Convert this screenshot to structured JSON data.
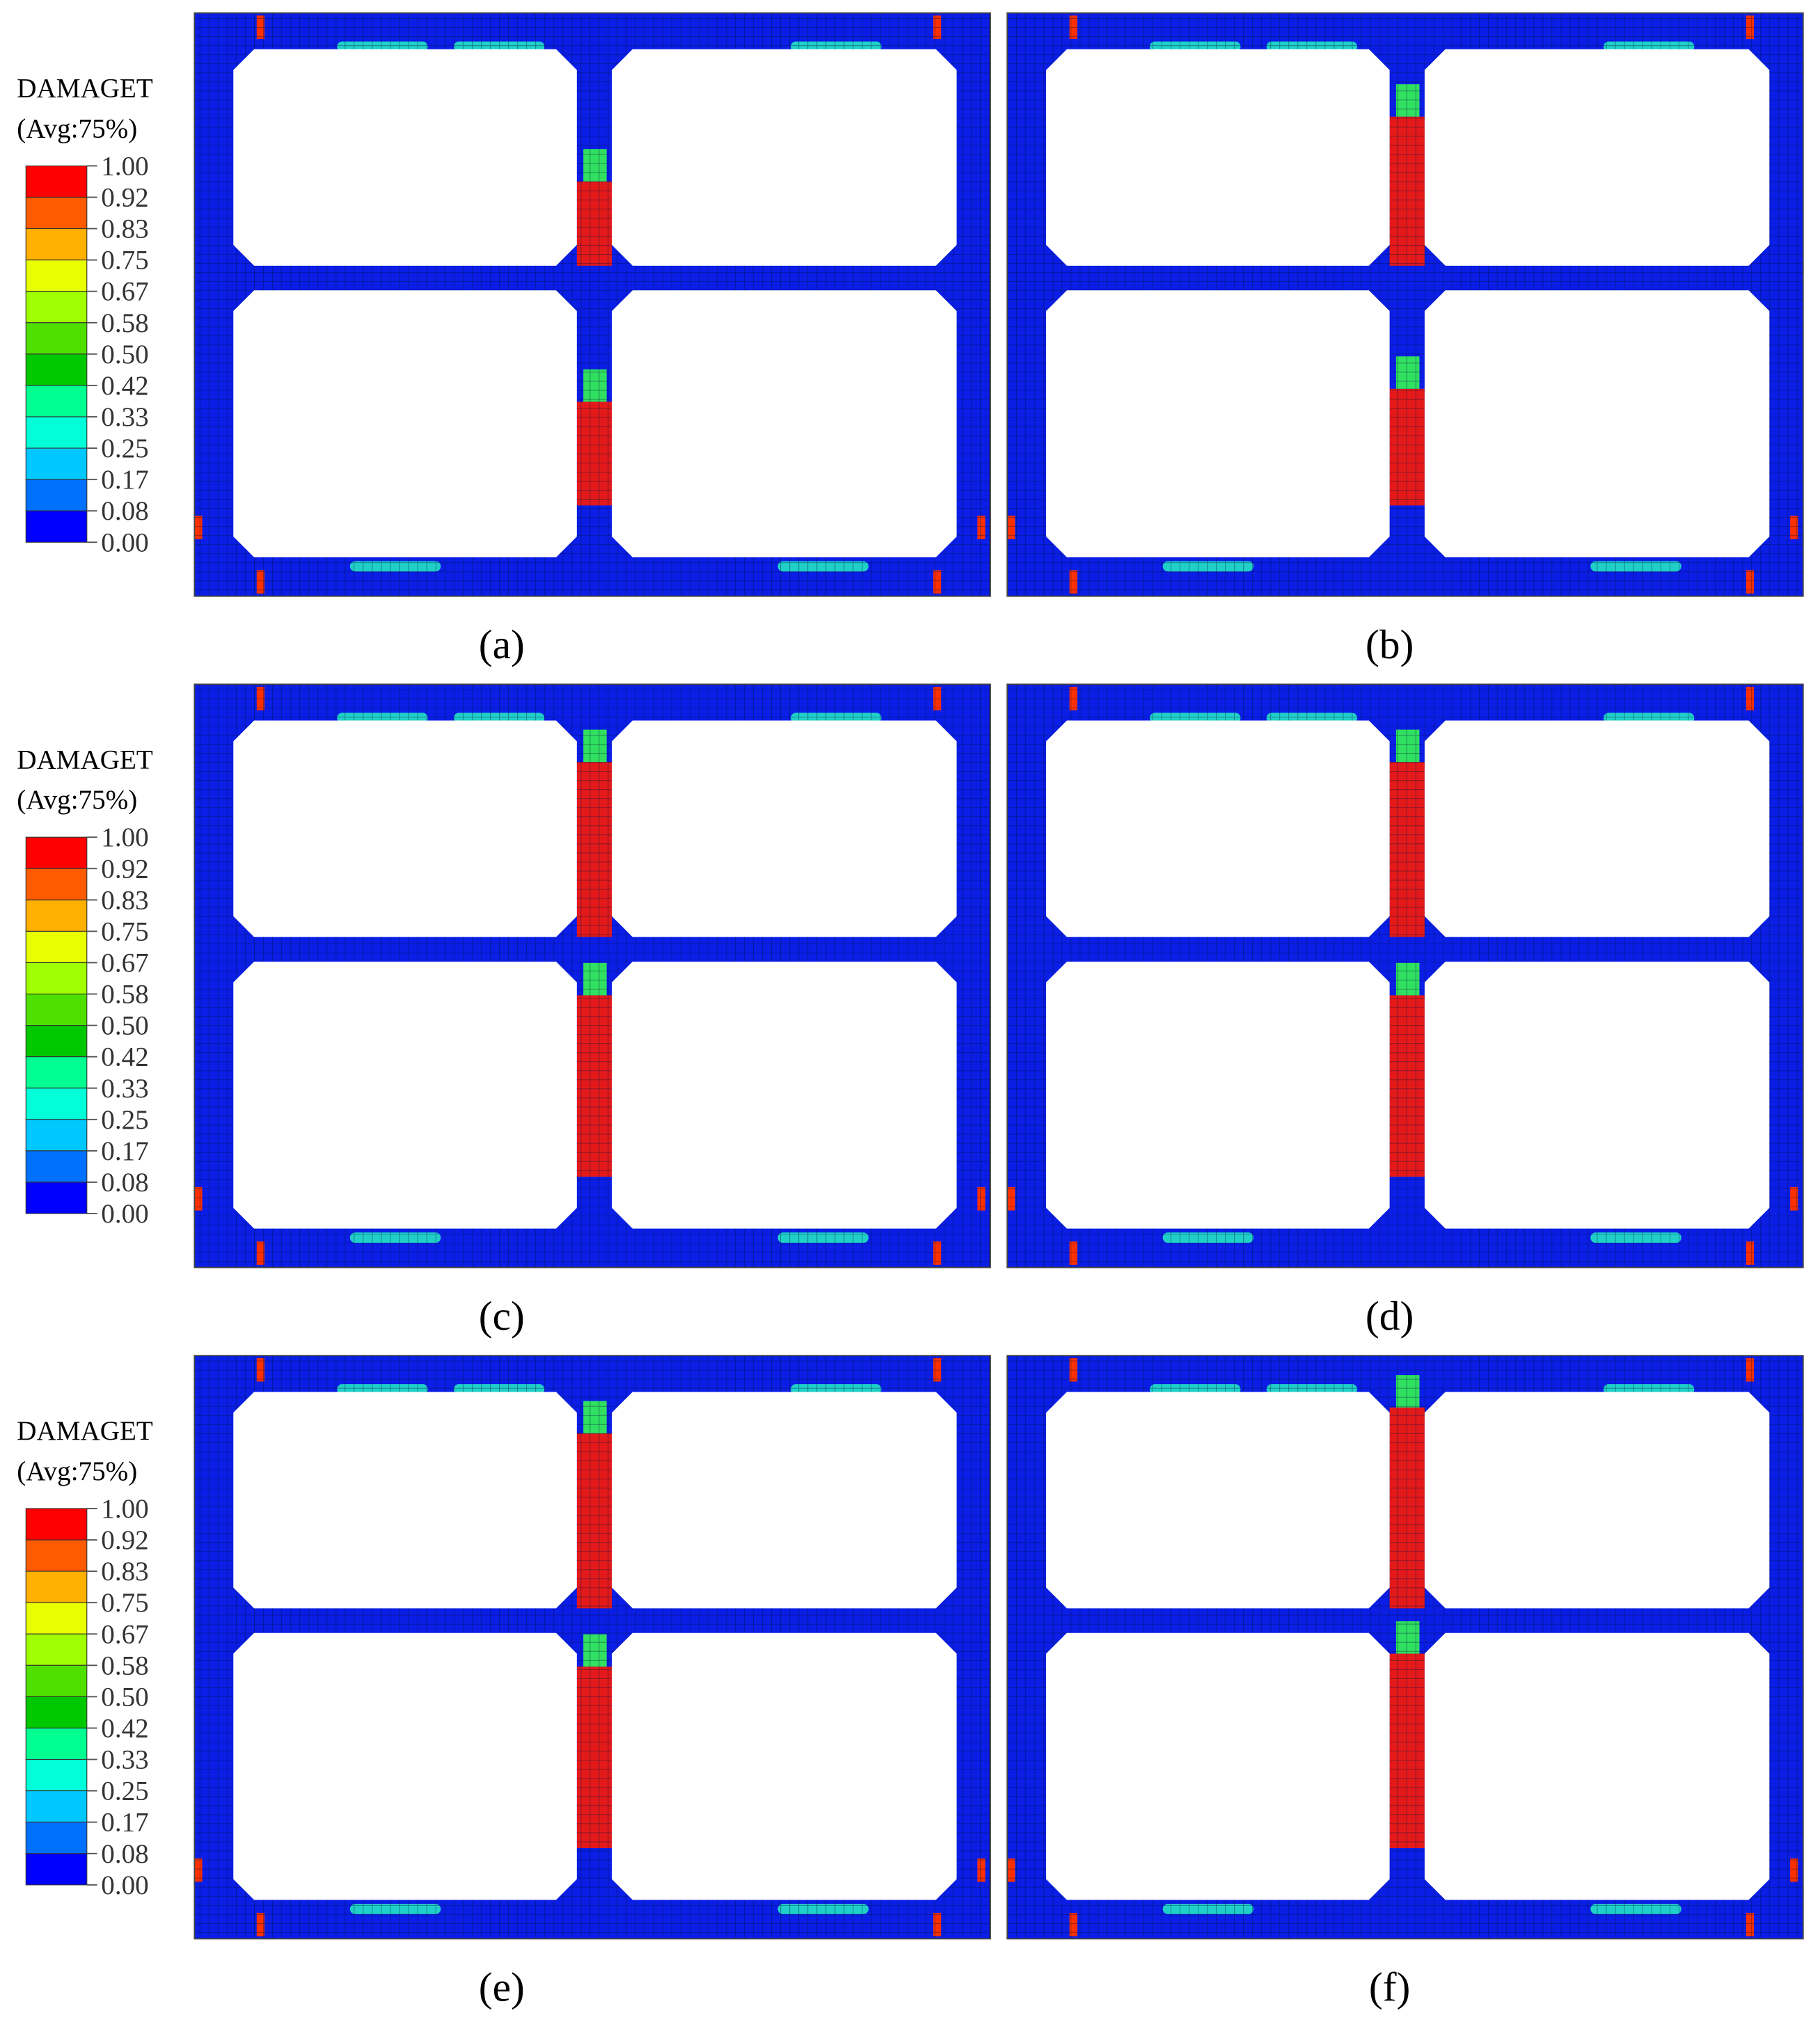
{
  "legends": [
    {
      "title": "DAMAGET",
      "subtitle": "(Avg:75%)",
      "ticks": [
        "1.00",
        "0.92",
        "0.83",
        "0.75",
        "0.67",
        "0.58",
        "0.50",
        "0.42",
        "0.33",
        "0.25",
        "0.17",
        "0.08",
        "0.00"
      ]
    },
    {
      "title": "DAMAGET",
      "subtitle": "(Avg:75%)",
      "ticks": [
        "1.00",
        "0.92",
        "0.83",
        "0.75",
        "0.67",
        "0.58",
        "0.50",
        "0.42",
        "0.33",
        "0.25",
        "0.17",
        "0.08",
        "0.00"
      ]
    },
    {
      "title": "DAMAGET",
      "subtitle": "(Avg:75%)",
      "ticks": [
        "1.00",
        "0.92",
        "0.83",
        "0.75",
        "0.67",
        "0.58",
        "0.50",
        "0.42",
        "0.33",
        "0.25",
        "0.17",
        "0.08",
        "0.00"
      ]
    }
  ],
  "panels": [
    {
      "label": "(a)"
    },
    {
      "label": "(b)"
    },
    {
      "label": "(c)"
    },
    {
      "label": "(d)"
    },
    {
      "label": "(e)"
    },
    {
      "label": "(f)"
    }
  ]
}
